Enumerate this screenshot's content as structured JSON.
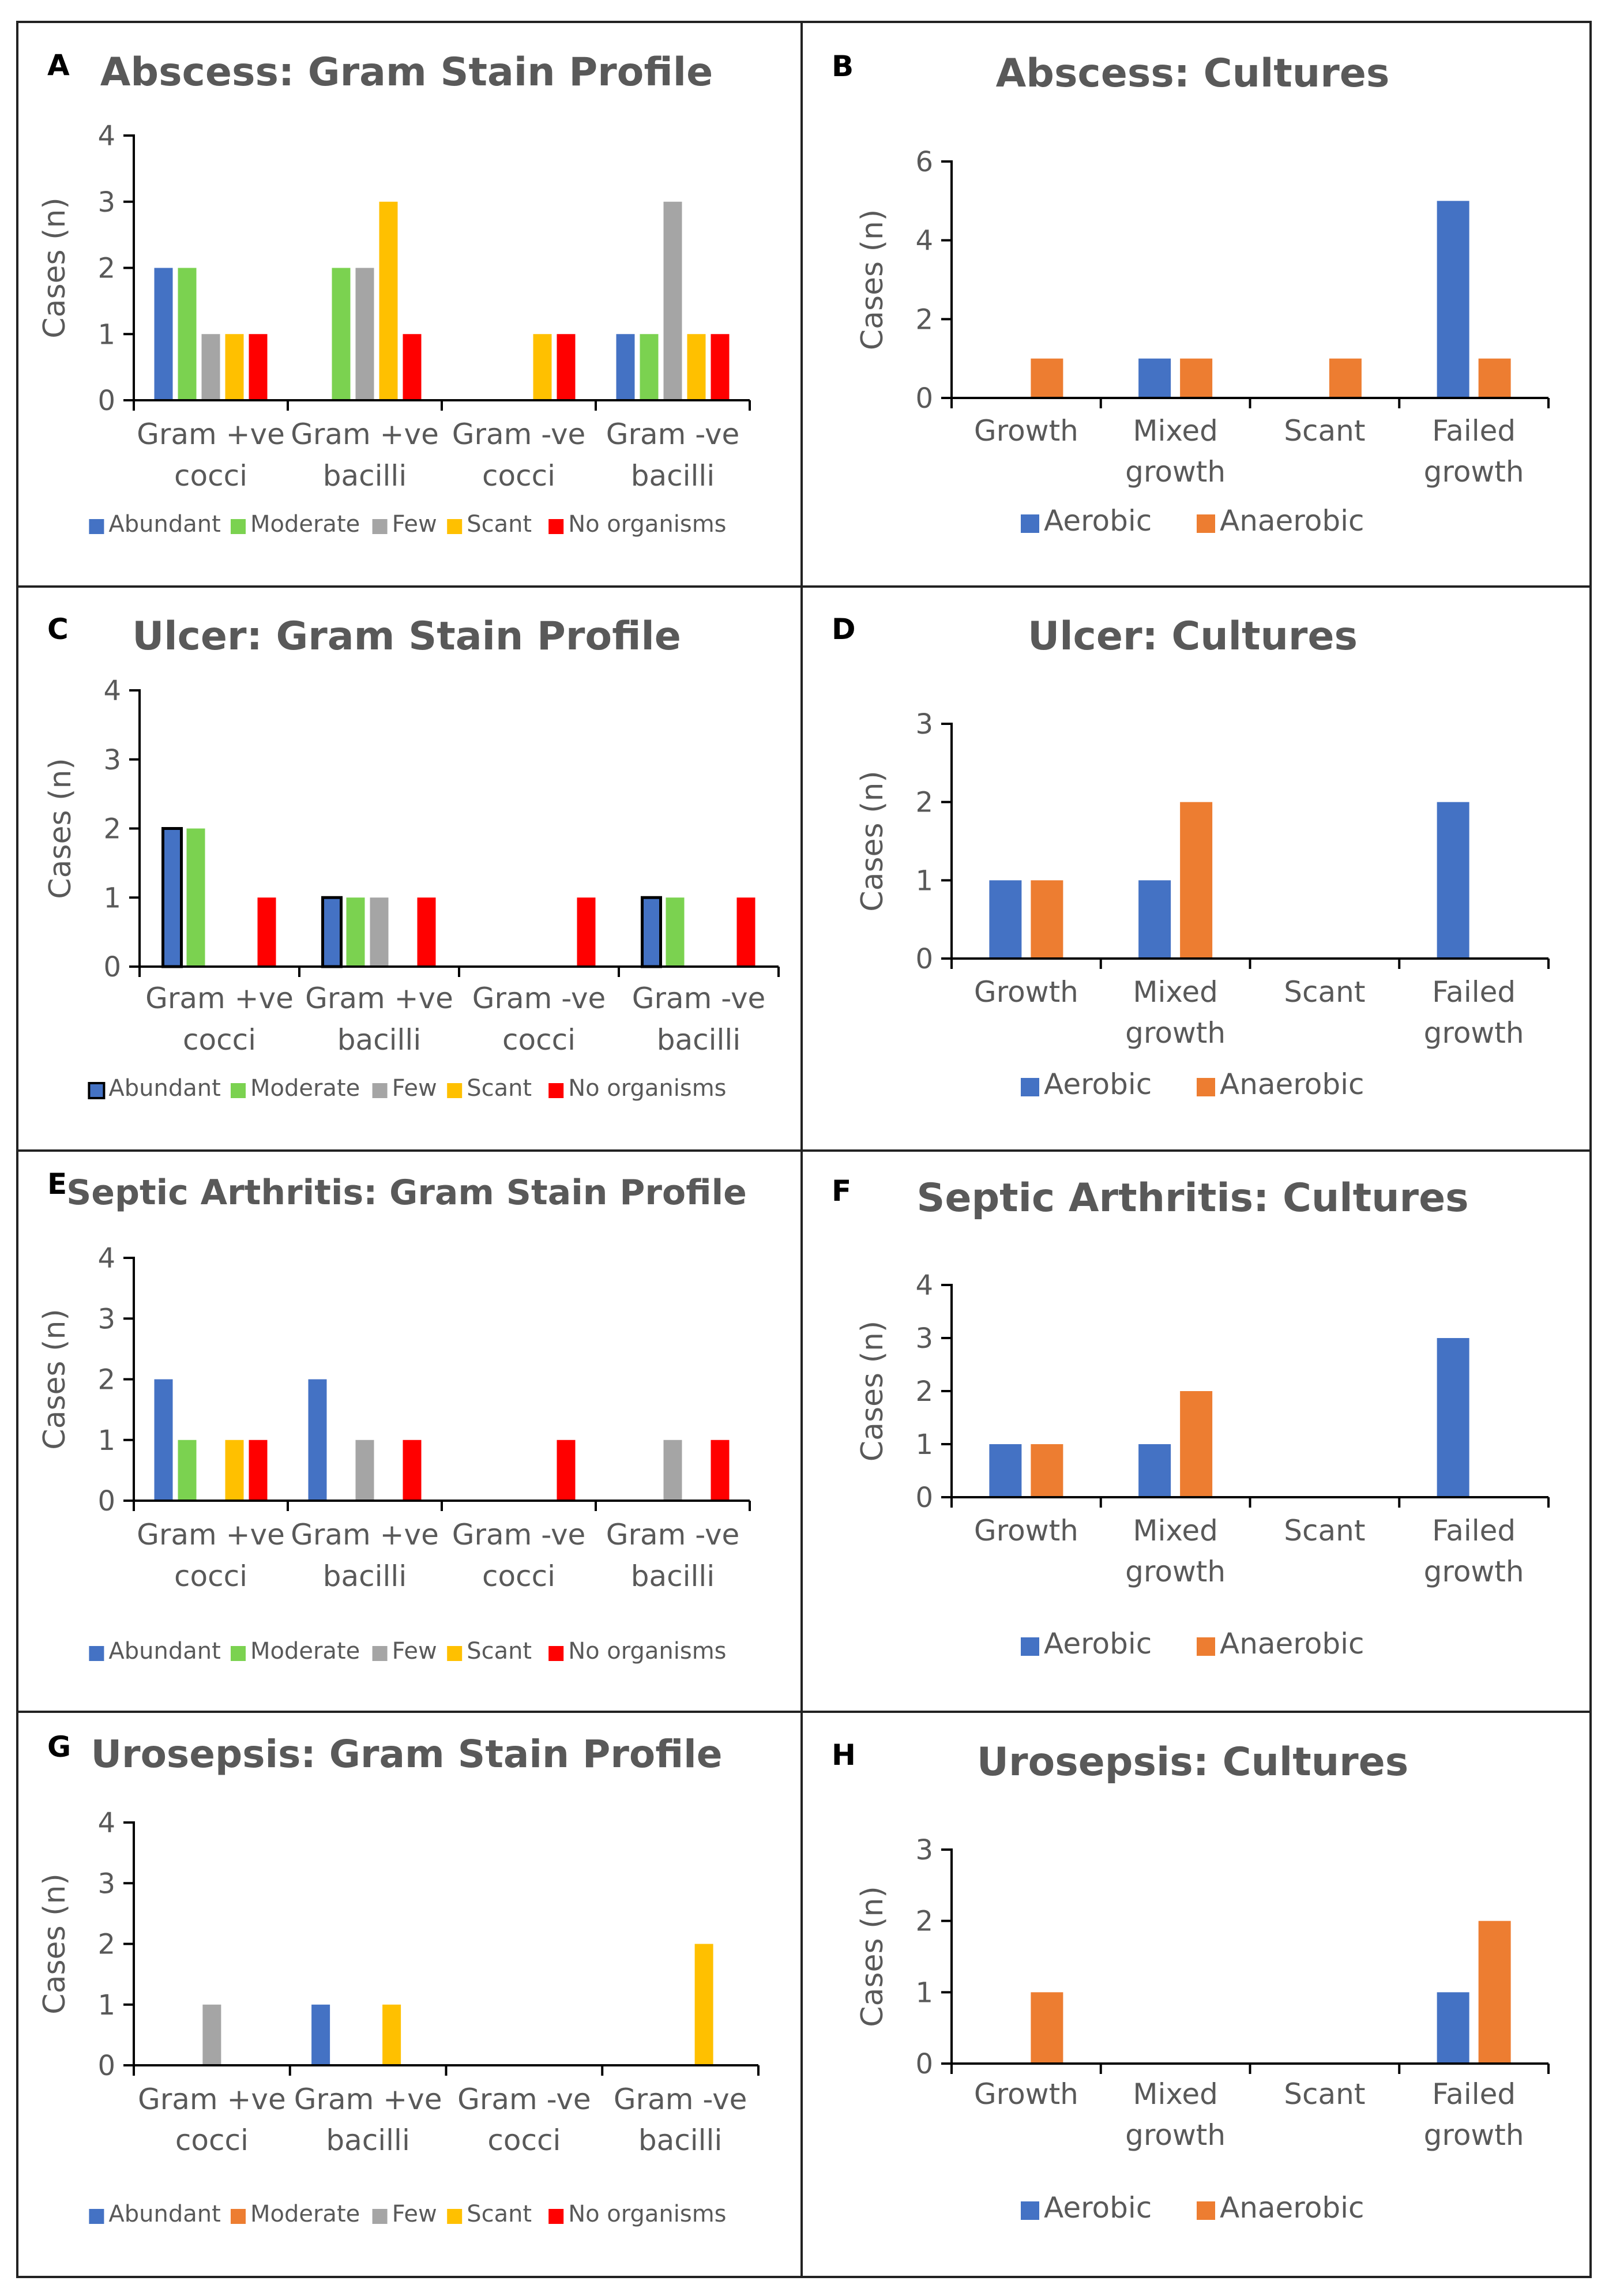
{
  "colors": {
    "blue": "#4472C4",
    "green": "#7BD250",
    "gray": "#A5A5A5",
    "yellow": "#FFC000",
    "red": "#FF0000",
    "orange": "#ED7D31",
    "title": "#595959",
    "axis": "#000000",
    "tick": "#595959"
  },
  "chart_data": [
    {
      "panel": "A",
      "type": "bar",
      "title": "Abscess: Gram Stain Profile",
      "ylabel": "Cases (n)",
      "ylim": [
        0,
        4
      ],
      "yticks": [
        0,
        1,
        2,
        3,
        4
      ],
      "categories": [
        [
          "Gram +ve",
          "cocci"
        ],
        [
          "Gram +ve",
          "bacilli"
        ],
        [
          "Gram -ve",
          "cocci"
        ],
        [
          "Gram -ve",
          "bacilli"
        ]
      ],
      "series": [
        {
          "name": "Abundant",
          "color": "#4472C4",
          "values": [
            2,
            0,
            0,
            1
          ]
        },
        {
          "name": "Moderate",
          "color": "#7BD250",
          "values": [
            2,
            2,
            0,
            1
          ]
        },
        {
          "name": "Few",
          "color": "#A5A5A5",
          "values": [
            1,
            2,
            0,
            3
          ]
        },
        {
          "name": "Scant",
          "color": "#FFC000",
          "values": [
            1,
            3,
            1,
            1
          ]
        },
        {
          "name": "No organisms",
          "color": "#FF0000",
          "values": [
            1,
            1,
            1,
            1
          ]
        }
      ]
    },
    {
      "panel": "B",
      "type": "bar",
      "title": "Abscess: Cultures",
      "ylabel": "Cases (n)",
      "ylim": [
        0,
        6
      ],
      "yticks": [
        0,
        2,
        4,
        6
      ],
      "categories": [
        [
          "Growth"
        ],
        [
          "Mixed",
          "growth"
        ],
        [
          "Scant"
        ],
        [
          "Failed",
          "growth"
        ]
      ],
      "series": [
        {
          "name": "Aerobic",
          "color": "#4472C4",
          "values": [
            0,
            1,
            0,
            5
          ]
        },
        {
          "name": "Anaerobic",
          "color": "#ED7D31",
          "values": [
            1,
            1,
            1,
            1
          ]
        }
      ]
    },
    {
      "panel": "C",
      "type": "bar",
      "title": "Ulcer: Gram Stain Profile",
      "ylabel": "Cases (n)",
      "ylim": [
        0,
        4
      ],
      "yticks": [
        0,
        1,
        2,
        3,
        4
      ],
      "categories": [
        [
          "Gram +ve",
          "cocci"
        ],
        [
          "Gram +ve",
          "bacilli"
        ],
        [
          "Gram -ve",
          "cocci"
        ],
        [
          "Gram -ve",
          "bacilli"
        ]
      ],
      "series": [
        {
          "name": "Abundant",
          "color": "#4472C4",
          "outline": true,
          "values": [
            2,
            1,
            0,
            1
          ]
        },
        {
          "name": "Moderate",
          "color": "#7BD250",
          "values": [
            2,
            1,
            0,
            1
          ]
        },
        {
          "name": "Few",
          "color": "#A5A5A5",
          "values": [
            0,
            1,
            0,
            0
          ]
        },
        {
          "name": "Scant",
          "color": "#FFC000",
          "values": [
            0,
            0,
            0,
            0
          ]
        },
        {
          "name": "No organisms",
          "color": "#FF0000",
          "values": [
            1,
            1,
            1,
            1
          ]
        }
      ]
    },
    {
      "panel": "D",
      "type": "bar",
      "title": "Ulcer: Cultures",
      "ylabel": "Cases (n)",
      "ylim": [
        0,
        3
      ],
      "yticks": [
        0,
        1,
        2,
        3
      ],
      "categories": [
        [
          "Growth"
        ],
        [
          "Mixed",
          "growth"
        ],
        [
          "Scant"
        ],
        [
          "Failed",
          "growth"
        ]
      ],
      "series": [
        {
          "name": "Aerobic",
          "color": "#4472C4",
          "values": [
            1,
            1,
            0,
            2
          ]
        },
        {
          "name": "Anaerobic",
          "color": "#ED7D31",
          "values": [
            1,
            2,
            0,
            0
          ]
        }
      ]
    },
    {
      "panel": "E",
      "type": "bar",
      "title": "Septic Arthritis: Gram Stain Profile",
      "ylabel": "Cases (n)",
      "ylim": [
        0,
        4
      ],
      "yticks": [
        0,
        1,
        2,
        3,
        4
      ],
      "categories": [
        [
          "Gram +ve",
          "cocci"
        ],
        [
          "Gram +ve",
          "bacilli"
        ],
        [
          "Gram -ve",
          "cocci"
        ],
        [
          "Gram -ve",
          "bacilli"
        ]
      ],
      "series": [
        {
          "name": "Abundant",
          "color": "#4472C4",
          "values": [
            2,
            2,
            0,
            0
          ]
        },
        {
          "name": "Moderate",
          "color": "#7BD250",
          "values": [
            1,
            0,
            0,
            0
          ]
        },
        {
          "name": "Few",
          "color": "#A5A5A5",
          "values": [
            0,
            1,
            0,
            1
          ]
        },
        {
          "name": "Scant",
          "color": "#FFC000",
          "values": [
            1,
            0,
            0,
            0
          ]
        },
        {
          "name": "No organisms",
          "color": "#FF0000",
          "values": [
            1,
            1,
            1,
            1
          ]
        }
      ]
    },
    {
      "panel": "F",
      "type": "bar",
      "title": "Septic Arthritis: Cultures",
      "ylabel": "Cases (n)",
      "ylim": [
        0,
        4
      ],
      "yticks": [
        0,
        1,
        2,
        3,
        4
      ],
      "categories": [
        [
          "Growth"
        ],
        [
          "Mixed",
          "growth"
        ],
        [
          "Scant"
        ],
        [
          "Failed",
          "growth"
        ]
      ],
      "series": [
        {
          "name": "Aerobic",
          "color": "#4472C4",
          "values": [
            1,
            1,
            0,
            3
          ]
        },
        {
          "name": "Anaerobic",
          "color": "#ED7D31",
          "values": [
            1,
            2,
            0,
            0
          ]
        }
      ]
    },
    {
      "panel": "G",
      "type": "bar",
      "title": "Urosepsis: Gram Stain Profile",
      "ylabel": "Cases (n)",
      "ylim": [
        0,
        4
      ],
      "yticks": [
        0,
        1,
        2,
        3,
        4
      ],
      "categories": [
        [
          "Gram +ve",
          "cocci"
        ],
        [
          "Gram +ve",
          "bacilli"
        ],
        [
          "Gram -ve",
          "cocci"
        ],
        [
          "Gram -ve",
          "bacilli"
        ]
      ],
      "series": [
        {
          "name": "Abundant",
          "color": "#4472C4",
          "values": [
            0,
            1,
            0,
            0
          ]
        },
        {
          "name": "Moderate",
          "color": "#ED7D31",
          "values": [
            0,
            0,
            0,
            0
          ]
        },
        {
          "name": "Few",
          "color": "#A5A5A5",
          "values": [
            1,
            0,
            0,
            0
          ]
        },
        {
          "name": "Scant",
          "color": "#FFC000",
          "values": [
            0,
            1,
            0,
            2
          ]
        },
        {
          "name": "No organisms",
          "color": "#FF0000",
          "values": [
            0,
            0,
            0,
            0
          ]
        }
      ]
    },
    {
      "panel": "H",
      "type": "bar",
      "title": "Urosepsis: Cultures",
      "ylabel": "Cases (n)",
      "ylim": [
        0,
        3
      ],
      "yticks": [
        0,
        1,
        2,
        3
      ],
      "categories": [
        [
          "Growth"
        ],
        [
          "Mixed",
          "growth"
        ],
        [
          "Scant"
        ],
        [
          "Failed",
          "growth"
        ]
      ],
      "series": [
        {
          "name": "Aerobic",
          "color": "#4472C4",
          "values": [
            0,
            0,
            0,
            1
          ]
        },
        {
          "name": "Anaerobic",
          "color": "#ED7D31",
          "values": [
            1,
            0,
            0,
            2
          ]
        }
      ]
    }
  ]
}
